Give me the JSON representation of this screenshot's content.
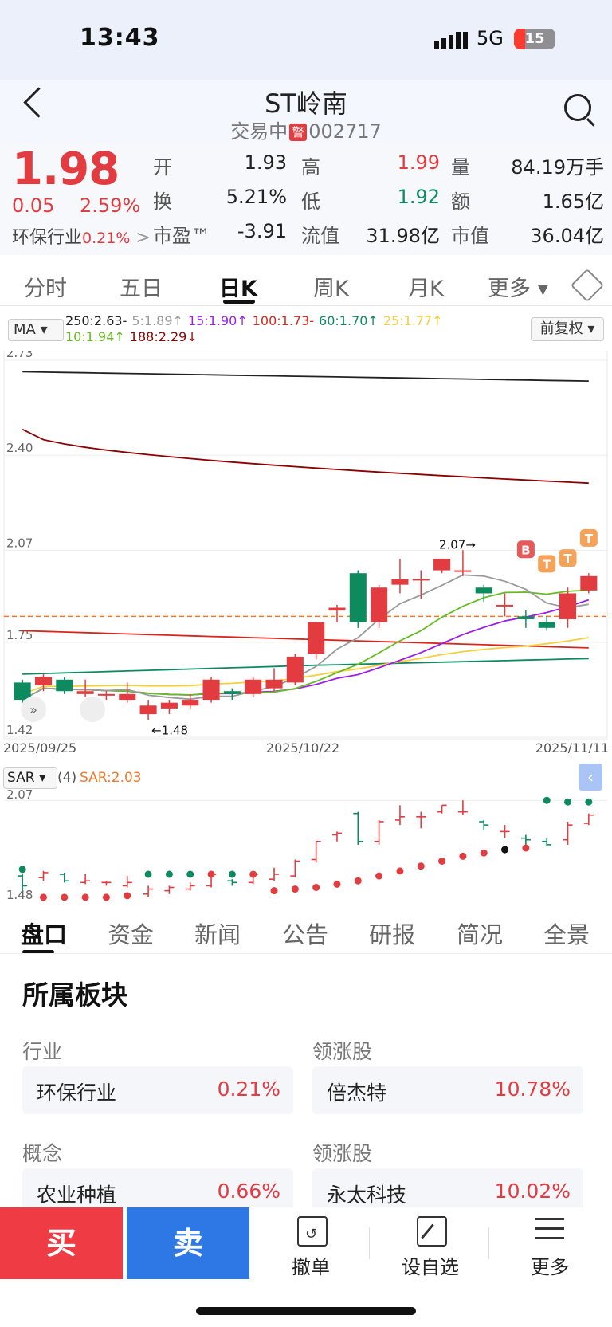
{
  "status": {
    "time": "13:43",
    "network": "5G",
    "battery": "15"
  },
  "header": {
    "title": "ST岭南",
    "status_text": "交易中",
    "warn_badge": "警",
    "code": "002717"
  },
  "quote": {
    "price": "1.98",
    "change": "0.05",
    "change_pct": "2.59%",
    "industry_name": "环保行业",
    "industry_pct": "0.21%",
    "industry_arrow": ">",
    "rows": [
      [
        {
          "label": "开",
          "value": "1.93",
          "color": "normal"
        },
        {
          "label": "高",
          "value": "1.99",
          "color": "red"
        },
        {
          "label": "量",
          "value": "84.19万手",
          "color": "normal"
        }
      ],
      [
        {
          "label": "换",
          "value": "5.21%",
          "color": "normal"
        },
        {
          "label": "低",
          "value": "1.92",
          "color": "green"
        },
        {
          "label": "额",
          "value": "1.65亿",
          "color": "normal"
        }
      ],
      [
        {
          "label": "市盈™",
          "value": "-3.91",
          "color": "normal"
        },
        {
          "label": "流值",
          "value": "31.98亿",
          "color": "normal"
        },
        {
          "label": "市值",
          "value": "36.04亿",
          "color": "normal"
        }
      ]
    ]
  },
  "chart_tabs": [
    "分时",
    "五日",
    "日K",
    "周K",
    "月K",
    "更多 ▾"
  ],
  "active_chart_tab": "日K",
  "indicator": {
    "selector": "MA ▾",
    "adjust": "前复权 ▾",
    "legend_row1": [
      {
        "text": "250:2.63-",
        "color": "#222222"
      },
      {
        "text": "5:1.89↑",
        "color": "#9a9a9a"
      },
      {
        "text": "15:1.90↑",
        "color": "#9b1fe8"
      },
      {
        "text": "100:1.73-",
        "color": "#d9261c"
      },
      {
        "text": "60:1.70↑",
        "color": "#0e8a5f"
      },
      {
        "text": "25:1.77↑",
        "color": "#f4d03f"
      }
    ],
    "legend_row2": [
      {
        "text": "10:1.94↑",
        "color": "#66bb22"
      },
      {
        "text": "188:2.29↓",
        "color": "#8b0000"
      }
    ]
  },
  "sar": {
    "label": "SAR ▾",
    "param": "(4)",
    "value": "SAR:2.03",
    "ytick": "2.07",
    "ylow": "1.48"
  },
  "chart_data": {
    "type": "candlestick",
    "y_ticks": [
      "2.73",
      "2.40",
      "2.07",
      "1.75",
      "1.42"
    ],
    "ylim": [
      1.42,
      2.73
    ],
    "x_labels": [
      "2025/09/25",
      "2025/10/22",
      "2025/11/11"
    ],
    "annotations": {
      "high": "2.07→",
      "low": "←1.48",
      "markers": [
        "B",
        "T",
        "T",
        "T"
      ]
    },
    "reference_price": 1.84,
    "candles": [
      {
        "o": 1.61,
        "c": 1.55,
        "h": 1.62,
        "l": 1.52
      },
      {
        "o": 1.6,
        "c": 1.63,
        "h": 1.64,
        "l": 1.58
      },
      {
        "o": 1.62,
        "c": 1.58,
        "h": 1.63,
        "l": 1.57
      },
      {
        "o": 1.57,
        "c": 1.58,
        "h": 1.62,
        "l": 1.56
      },
      {
        "o": 1.57,
        "c": 1.57,
        "h": 1.58,
        "l": 1.55
      },
      {
        "o": 1.55,
        "c": 1.57,
        "h": 1.61,
        "l": 1.54
      },
      {
        "o": 1.5,
        "c": 1.53,
        "h": 1.55,
        "l": 1.48
      },
      {
        "o": 1.52,
        "c": 1.54,
        "h": 1.55,
        "l": 1.5
      },
      {
        "o": 1.53,
        "c": 1.55,
        "h": 1.57,
        "l": 1.52
      },
      {
        "o": 1.55,
        "c": 1.62,
        "h": 1.63,
        "l": 1.54
      },
      {
        "o": 1.58,
        "c": 1.57,
        "h": 1.59,
        "l": 1.55
      },
      {
        "o": 1.57,
        "c": 1.62,
        "h": 1.63,
        "l": 1.56
      },
      {
        "o": 1.59,
        "c": 1.62,
        "h": 1.66,
        "l": 1.58
      },
      {
        "o": 1.61,
        "c": 1.7,
        "h": 1.71,
        "l": 1.6
      },
      {
        "o": 1.71,
        "c": 1.82,
        "h": 1.82,
        "l": 1.69
      },
      {
        "o": 1.86,
        "c": 1.87,
        "h": 1.88,
        "l": 1.82
      },
      {
        "o": 1.99,
        "c": 1.82,
        "h": 2.0,
        "l": 1.8
      },
      {
        "o": 1.82,
        "c": 1.94,
        "h": 1.95,
        "l": 1.8
      },
      {
        "o": 1.95,
        "c": 1.97,
        "h": 2.04,
        "l": 1.92
      },
      {
        "o": 1.97,
        "c": 1.97,
        "h": 2.0,
        "l": 1.9
      },
      {
        "o": 2.0,
        "c": 2.04,
        "h": 2.04,
        "l": 1.99
      },
      {
        "o": 2.0,
        "c": 2.0,
        "h": 2.07,
        "l": 1.98
      },
      {
        "o": 1.94,
        "c": 1.92,
        "h": 1.95,
        "l": 1.89
      },
      {
        "o": 1.88,
        "c": 1.88,
        "h": 1.92,
        "l": 1.84
      },
      {
        "o": 1.84,
        "c": 1.83,
        "h": 1.86,
        "l": 1.8
      },
      {
        "o": 1.82,
        "c": 1.8,
        "h": 1.84,
        "l": 1.79
      },
      {
        "o": 1.83,
        "c": 1.92,
        "h": 1.94,
        "l": 1.8
      },
      {
        "o": 1.93,
        "c": 1.98,
        "h": 1.99,
        "l": 1.92
      }
    ]
  },
  "section_tabs": [
    "盘口",
    "资金",
    "新闻",
    "公告",
    "研报",
    "简况",
    "全景"
  ],
  "sector": {
    "heading": "所属板块",
    "groups": [
      {
        "left_label": "行业",
        "right_label": "领涨股",
        "left_name": "环保行业",
        "left_pct": "0.21%",
        "right_name": "倍杰特",
        "right_pct": "10.78%"
      },
      {
        "left_label": "概念",
        "right_label": "领涨股",
        "left_name": "农业种植",
        "left_pct": "0.66%",
        "right_name": "永太科技",
        "right_pct": "10.02%"
      }
    ]
  },
  "bottom": {
    "buy": "买",
    "sell": "卖",
    "cancel": "撤单",
    "watch": "设自选",
    "more": "更多"
  }
}
